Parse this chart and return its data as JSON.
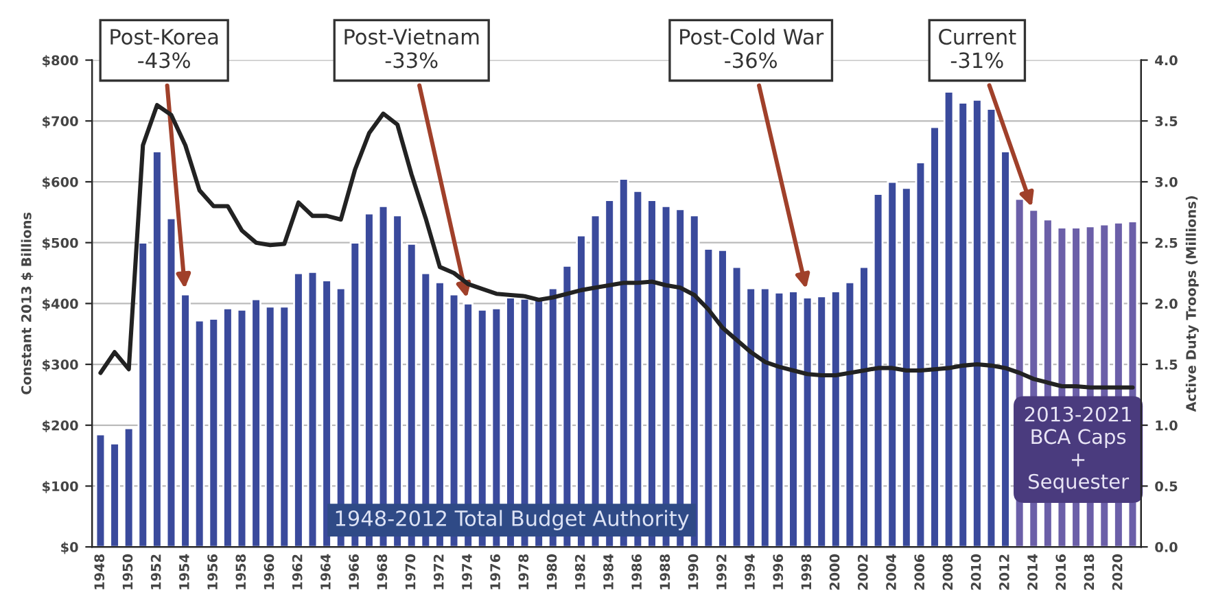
{
  "chart_data": {
    "type": "bar",
    "ylabel": "Constant 2013 $ Billions",
    "y2label": "Active Duty Troops (Millions)",
    "categories": [
      "1948",
      null,
      "1950",
      null,
      "1952",
      null,
      "1954",
      null,
      "1956",
      null,
      "1958",
      null,
      "1960",
      null,
      "1962",
      null,
      "1964",
      null,
      "1966",
      null,
      "1968",
      null,
      "1970",
      null,
      "1972",
      null,
      "1974",
      null,
      "1976",
      null,
      "1978",
      null,
      "1980",
      null,
      "1982",
      null,
      "1984",
      null,
      "1986",
      null,
      "1988",
      null,
      "1990",
      null,
      "1992",
      null,
      "1994",
      null,
      "1996",
      null,
      "1998",
      null,
      "2000",
      null,
      "2002",
      null,
      "2004",
      null,
      "2006",
      null,
      "2008",
      null,
      "2010",
      null,
      "2012",
      null,
      "2014",
      null,
      "2016",
      null,
      "2018",
      null,
      "2020",
      null
    ],
    "series": [
      {
        "colors": [
          "#3a4a9c",
          "#3a4a9c",
          "#3a4a9c",
          "#3a4a9c",
          "#3a4a9c",
          "#3a4a9c",
          "#3a4a9c",
          "#3a4a9c",
          "#3a4a9c",
          "#3a4a9c",
          "#3a4a9c",
          "#3a4a9c",
          "#3a4a9c",
          "#3a4a9c",
          "#3a4a9c",
          "#3a4a9c",
          "#3a4a9c",
          "#3a4a9c",
          "#3a4a9c",
          "#3a4a9c",
          "#3a4a9c",
          "#3a4a9c",
          "#3a4a9c",
          "#3a4a9c",
          "#3a4a9c",
          "#3a4a9c",
          "#3a4a9c",
          "#3a4a9c",
          "#3a4a9c",
          "#3a4a9c",
          "#3a4a9c",
          "#3a4a9c",
          "#3a4a9c",
          "#3a4a9c",
          "#3a4a9c",
          "#3a4a9c",
          "#3a4a9c",
          "#3a4a9c",
          "#3a4a9c",
          "#3a4a9c",
          "#3a4a9c",
          "#3a4a9c",
          "#3a4a9c",
          "#3a4a9c",
          "#3a4a9c",
          "#3a4a9c",
          "#3a4a9c",
          "#3a4a9c",
          "#3a4a9c",
          "#3a4a9c",
          "#3a4a9c",
          "#3a4a9c",
          "#3a4a9c",
          "#3a4a9c",
          "#3a4a9c",
          "#3a4a9c",
          "#3a4a9c",
          "#3a4a9c",
          "#3a4a9c",
          "#3a4a9c",
          "#3a4a9c",
          "#3a4a9c",
          "#3a4a9c",
          "#3a4a9c",
          "#3a4a9c",
          "#6b5fa8",
          "#6b5fa8",
          "#6b5fa8",
          "#6b5fa8",
          "#6b5fa8",
          "#6b5fa8",
          "#6b5fa8",
          "#6b5fa8",
          "#6b5fa8"
        ],
        "values": [
          185,
          170,
          195,
          500,
          650,
          540,
          415,
          372,
          375,
          392,
          390,
          407,
          395,
          395,
          450,
          452,
          438,
          425,
          500,
          548,
          560,
          545,
          498,
          450,
          435,
          415,
          400,
          390,
          392,
          410,
          408,
          410,
          425,
          462,
          512,
          545,
          570,
          605,
          585,
          570,
          560,
          555,
          545,
          490,
          488,
          460,
          425,
          425,
          418,
          420,
          410,
          412,
          420,
          435,
          460,
          580,
          600,
          590,
          632,
          690,
          748,
          730,
          735,
          720,
          650,
          572,
          554,
          538,
          525,
          525,
          527,
          530,
          533,
          535
        ]
      },
      {
        "type": "line",
        "axis": "y2",
        "color": "#222222",
        "values": [
          1.43,
          1.6,
          1.46,
          3.3,
          3.63,
          3.55,
          3.3,
          2.93,
          2.8,
          2.8,
          2.6,
          2.5,
          2.48,
          2.49,
          2.83,
          2.72,
          2.72,
          2.69,
          3.1,
          3.4,
          3.56,
          3.47,
          3.06,
          2.7,
          2.3,
          2.25,
          2.16,
          2.12,
          2.08,
          2.07,
          2.06,
          2.03,
          2.05,
          2.08,
          2.11,
          2.13,
          2.15,
          2.17,
          2.17,
          2.18,
          2.15,
          2.13,
          2.07,
          1.95,
          1.8,
          1.7,
          1.6,
          1.52,
          1.48,
          1.45,
          1.42,
          1.41,
          1.41,
          1.43,
          1.45,
          1.47,
          1.47,
          1.45,
          1.45,
          1.46,
          1.47,
          1.49,
          1.5,
          1.49,
          1.47,
          1.43,
          1.38,
          1.35,
          1.32,
          1.32,
          1.31,
          1.31,
          1.31,
          1.31
        ]
      }
    ],
    "ylim": [
      0,
      800
    ],
    "yticks": [
      {
        "value": 0,
        "label": "$0"
      },
      {
        "value": 100,
        "label": "$100"
      },
      {
        "value": 200,
        "label": "$200"
      },
      {
        "value": 300,
        "label": "$300"
      },
      {
        "value": 400,
        "label": "$400"
      },
      {
        "value": 500,
        "label": "$500"
      },
      {
        "value": 600,
        "label": "$600"
      },
      {
        "value": 700,
        "label": "$700"
      },
      {
        "value": 800,
        "label": "$800"
      }
    ],
    "y2lim": [
      0,
      4
    ],
    "y2ticks": [
      {
        "value": 0,
        "label": "0.0"
      },
      {
        "value": 0.5,
        "label": "0.5"
      },
      {
        "value": 1,
        "label": "1.0"
      },
      {
        "value": 1.5,
        "label": "1.5"
      },
      {
        "value": 2,
        "label": "2.0"
      },
      {
        "value": 2.5,
        "label": "2.5"
      },
      {
        "value": 3,
        "label": "3.0"
      },
      {
        "value": 3.5,
        "label": "3.5"
      },
      {
        "value": 4,
        "label": "4.0"
      }
    ],
    "grid": "y",
    "annotations": [
      {
        "text": "Post-Korea\n-43%",
        "x": "1954",
        "y": 415
      },
      {
        "text": "Post-Vietnam\n-33%",
        "x": "1974",
        "y": 400
      },
      {
        "text": "Post-Cold War\n-36%",
        "x": "1998",
        "y": 415
      },
      {
        "text": "Current\n-31%",
        "x": "2014",
        "y": 550
      },
      "1948-2012 Total Budget Authority",
      "2013-2021\nBCA Caps\n+\nSequester"
    ]
  }
}
